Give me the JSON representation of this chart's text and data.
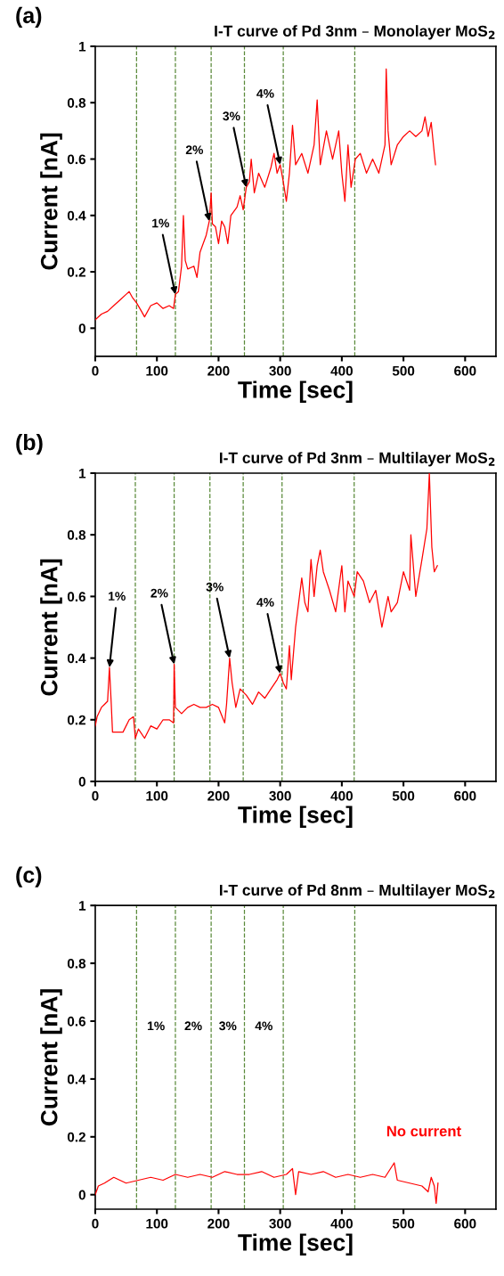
{
  "chart_data": [
    {
      "type": "line",
      "title": "I-T curve of Pd 3nm – Monolayer MoS$_{2}$",
      "xlabel": "Time [sec]",
      "ylabel": "Current [nA]",
      "xlim": [
        0,
        650
      ],
      "xticks": [
        0,
        100,
        200,
        300,
        400,
        500,
        600
      ],
      "ylim": [
        -0.1,
        1
      ],
      "yticks": [
        0,
        0.2,
        0.4,
        0.6,
        0.8,
        1
      ],
      "series": [
        {
          "color": "#ff0000",
          "x": [
            0,
            10,
            20,
            30,
            40,
            50,
            55,
            60,
            67,
            75,
            80,
            90,
            100,
            110,
            120,
            127,
            130,
            135,
            140,
            143,
            146,
            150,
            160,
            165,
            170,
            180,
            185,
            188,
            190,
            195,
            200,
            205,
            210,
            215,
            220,
            230,
            235,
            240,
            245,
            250,
            253,
            258,
            265,
            275,
            285,
            290,
            295,
            300,
            305,
            310,
            315,
            320,
            325,
            335,
            345,
            355,
            360,
            365,
            375,
            385,
            395,
            400,
            405,
            410,
            415,
            422,
            430,
            440,
            450,
            460,
            465,
            470,
            472,
            475,
            480,
            490,
            500,
            510,
            520,
            530,
            535,
            540,
            545,
            550,
            552
          ],
          "values": [
            0.03,
            0.05,
            0.06,
            0.08,
            0.1,
            0.12,
            0.13,
            0.11,
            0.09,
            0.06,
            0.04,
            0.08,
            0.09,
            0.07,
            0.08,
            0.07,
            0.12,
            0.13,
            0.22,
            0.4,
            0.24,
            0.21,
            0.22,
            0.18,
            0.27,
            0.33,
            0.38,
            0.48,
            0.37,
            0.36,
            0.3,
            0.38,
            0.36,
            0.3,
            0.4,
            0.43,
            0.47,
            0.42,
            0.5,
            0.52,
            0.6,
            0.48,
            0.55,
            0.5,
            0.57,
            0.62,
            0.55,
            0.58,
            0.52,
            0.45,
            0.55,
            0.72,
            0.58,
            0.62,
            0.55,
            0.65,
            0.81,
            0.58,
            0.7,
            0.6,
            0.7,
            0.55,
            0.45,
            0.65,
            0.5,
            0.6,
            0.62,
            0.55,
            0.6,
            0.55,
            0.6,
            0.65,
            0.92,
            0.7,
            0.58,
            0.65,
            0.68,
            0.7,
            0.68,
            0.7,
            0.75,
            0.68,
            0.73,
            0.62,
            0.58
          ]
        }
      ],
      "ref_lines": [
        {
          "axis": "x",
          "value": 67,
          "color": "#5a8a3a",
          "line_style": "dashed"
        },
        {
          "axis": "x",
          "value": 130,
          "color": "#5a8a3a",
          "line_style": "dashed"
        },
        {
          "axis": "x",
          "value": 188,
          "color": "#5a8a3a",
          "line_style": "dashed"
        },
        {
          "axis": "x",
          "value": 242,
          "color": "#5a8a3a",
          "line_style": "dashed"
        },
        {
          "axis": "x",
          "value": 305,
          "color": "#5a8a3a",
          "line_style": "dashed"
        },
        {
          "axis": "x",
          "value": 421,
          "color": "#5a8a3a",
          "line_style": "dashed"
        }
      ],
      "annotations": [
        "(a)",
        {
          "text": "1%",
          "x": 130,
          "y": 0.12
        },
        {
          "text": "2%",
          "x": 185,
          "y": 0.38
        },
        {
          "text": "3%",
          "x": 245,
          "y": 0.5
        },
        {
          "text": "4%",
          "x": 300,
          "y": 0.58
        }
      ]
    },
    {
      "type": "line",
      "title": "I-T curve of Pd 3nm – Multilayer MoS$_{2}$",
      "xlabel": "Time [sec]",
      "ylabel": "Current [nA]",
      "xlim": [
        0,
        650
      ],
      "xticks": [
        0,
        100,
        200,
        300,
        400,
        500,
        600
      ],
      "ylim": [
        0,
        1
      ],
      "yticks": [
        0,
        0.2,
        0.4,
        0.6,
        0.8,
        1
      ],
      "series": [
        {
          "color": "#ff0000",
          "x": [
            0,
            3,
            10,
            15,
            20,
            23,
            26,
            28,
            35,
            45,
            55,
            62,
            65,
            70,
            80,
            90,
            100,
            110,
            120,
            127,
            128,
            130,
            140,
            150,
            160,
            170,
            180,
            190,
            200,
            210,
            213,
            218,
            222,
            228,
            235,
            245,
            255,
            265,
            275,
            285,
            295,
            300,
            305,
            310,
            315,
            318,
            325,
            330,
            335,
            340,
            345,
            350,
            355,
            360,
            365,
            370,
            380,
            390,
            400,
            405,
            410,
            420,
            425,
            435,
            445,
            455,
            465,
            475,
            480,
            490,
            500,
            510,
            512,
            520,
            530,
            538,
            542,
            546,
            550,
            555
          ],
          "values": [
            0.18,
            0.21,
            0.24,
            0.25,
            0.26,
            0.37,
            0.25,
            0.16,
            0.16,
            0.16,
            0.2,
            0.21,
            0.14,
            0.17,
            0.14,
            0.18,
            0.17,
            0.2,
            0.2,
            0.19,
            0.38,
            0.24,
            0.22,
            0.24,
            0.25,
            0.24,
            0.24,
            0.25,
            0.24,
            0.19,
            0.25,
            0.4,
            0.32,
            0.24,
            0.3,
            0.28,
            0.25,
            0.29,
            0.27,
            0.3,
            0.33,
            0.35,
            0.32,
            0.3,
            0.44,
            0.33,
            0.5,
            0.58,
            0.66,
            0.58,
            0.55,
            0.72,
            0.6,
            0.7,
            0.75,
            0.68,
            0.62,
            0.55,
            0.7,
            0.55,
            0.65,
            0.6,
            0.68,
            0.65,
            0.58,
            0.62,
            0.5,
            0.6,
            0.55,
            0.58,
            0.68,
            0.62,
            0.8,
            0.6,
            0.72,
            0.82,
            1.0,
            0.76,
            0.68,
            0.7
          ]
        }
      ],
      "ref_lines": [
        {
          "axis": "x",
          "value": 65,
          "color": "#5a8a3a",
          "line_style": "dashed"
        },
        {
          "axis": "x",
          "value": 128,
          "color": "#5a8a3a",
          "line_style": "dashed"
        },
        {
          "axis": "x",
          "value": 186,
          "color": "#5a8a3a",
          "line_style": "dashed"
        },
        {
          "axis": "x",
          "value": 240,
          "color": "#5a8a3a",
          "line_style": "dashed"
        },
        {
          "axis": "x",
          "value": 303,
          "color": "#5a8a3a",
          "line_style": "dashed"
        },
        {
          "axis": "x",
          "value": 420,
          "color": "#5a8a3a",
          "line_style": "dashed"
        }
      ],
      "annotations": [
        "(b)",
        {
          "text": "1%",
          "x": 23,
          "y": 0.37
        },
        {
          "text": "2%",
          "x": 128,
          "y": 0.38
        },
        {
          "text": "3%",
          "x": 218,
          "y": 0.4
        },
        {
          "text": "4%",
          "x": 300,
          "y": 0.35
        }
      ]
    },
    {
      "type": "line",
      "title": "I-T curve of Pd 8nm – Multilayer MoS$_{2}$",
      "xlabel": "Time [sec]",
      "ylabel": "Current [nA]",
      "xlim": [
        0,
        650
      ],
      "xticks": [
        0,
        100,
        200,
        300,
        400,
        500,
        600
      ],
      "ylim": [
        -0.05,
        1
      ],
      "yticks": [
        0,
        0.2,
        0.4,
        0.6,
        0.8,
        1
      ],
      "series": [
        {
          "color": "#ff0000",
          "x": [
            0,
            5,
            15,
            30,
            50,
            70,
            90,
            110,
            130,
            150,
            170,
            190,
            210,
            230,
            250,
            270,
            290,
            310,
            320,
            325,
            330,
            350,
            370,
            390,
            410,
            430,
            450,
            470,
            485,
            490,
            510,
            530,
            540,
            545,
            550,
            553,
            556
          ],
          "values": [
            0.0,
            0.03,
            0.04,
            0.06,
            0.04,
            0.05,
            0.06,
            0.05,
            0.07,
            0.06,
            0.07,
            0.06,
            0.08,
            0.07,
            0.07,
            0.08,
            0.06,
            0.07,
            0.09,
            0.0,
            0.08,
            0.07,
            0.08,
            0.06,
            0.07,
            0.06,
            0.07,
            0.06,
            0.11,
            0.05,
            0.04,
            0.03,
            0.01,
            0.06,
            0.03,
            -0.03,
            0.04
          ]
        }
      ],
      "ref_lines": [
        {
          "axis": "x",
          "value": 67,
          "color": "#5a8a3a",
          "line_style": "dashed"
        },
        {
          "axis": "x",
          "value": 130,
          "color": "#5a8a3a",
          "line_style": "dashed"
        },
        {
          "axis": "x",
          "value": 188,
          "color": "#5a8a3a",
          "line_style": "dashed"
        },
        {
          "axis": "x",
          "value": 242,
          "color": "#5a8a3a",
          "line_style": "dashed"
        },
        {
          "axis": "x",
          "value": 305,
          "color": "#5a8a3a",
          "line_style": "dashed"
        },
        {
          "axis": "x",
          "value": 421,
          "color": "#5a8a3a",
          "line_style": "dashed"
        }
      ],
      "annotations": [
        "(c)",
        "1%",
        "2%",
        "3%",
        "4%",
        "No current"
      ]
    }
  ]
}
